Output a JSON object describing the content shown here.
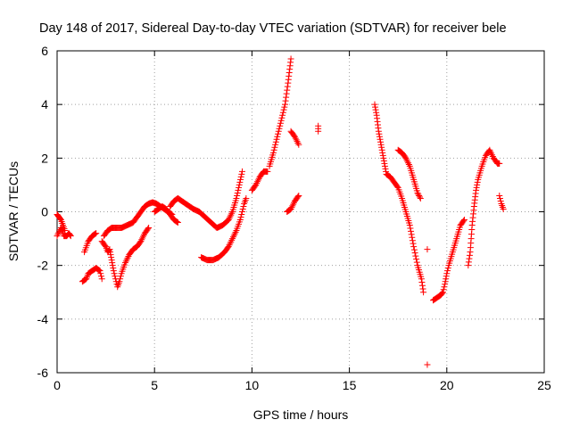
{
  "chart_data": {
    "type": "scatter",
    "title": "Day 148 of 2017, Sidereal Day-to-day VTEC variation (SDTVAR) for receiver bele",
    "xlabel": "GPS time / hours",
    "ylabel": "SDTVAR / TECUs",
    "xlim": [
      0,
      25
    ],
    "ylim": [
      -6,
      6
    ],
    "xticks": [
      0,
      5,
      10,
      15,
      20,
      25
    ],
    "yticks": [
      -6,
      -4,
      -2,
      0,
      2,
      4,
      6
    ],
    "xtick_labels": [
      "0",
      "5",
      "10",
      "15",
      "20",
      "25"
    ],
    "ytick_labels": [
      "-6",
      "-4",
      "-2",
      "0",
      "2",
      "4",
      "6"
    ],
    "grid": true,
    "legend": "none",
    "marker": "+",
    "color": "#ff0000",
    "series": [
      {
        "polylines": [
          [
            [
              0.0,
              -0.9
            ],
            [
              0.2,
              -0.6
            ],
            [
              0.35,
              -0.9
            ],
            [
              0.5,
              -0.9
            ],
            [
              0.6,
              -0.8
            ],
            [
              0.7,
              -0.9
            ]
          ],
          [
            [
              0.0,
              -0.1
            ],
            [
              0.1,
              -0.2
            ],
            [
              0.2,
              -0.3
            ],
            [
              0.3,
              -0.5
            ],
            [
              0.4,
              -0.7
            ]
          ],
          [
            [
              1.3,
              -2.6
            ],
            [
              1.5,
              -2.5
            ],
            [
              1.6,
              -2.3
            ],
            [
              1.8,
              -2.2
            ],
            [
              2.0,
              -2.1
            ],
            [
              2.2,
              -2.2
            ],
            [
              2.3,
              -2.5
            ]
          ],
          [
            [
              1.4,
              -1.5
            ],
            [
              1.6,
              -1.1
            ],
            [
              1.8,
              -0.9
            ],
            [
              2.0,
              -0.8
            ]
          ],
          [
            [
              2.3,
              -1.1
            ],
            [
              2.5,
              -1.3
            ],
            [
              2.6,
              -1.5
            ],
            [
              2.7,
              -1.4
            ],
            [
              2.8,
              -1.8
            ],
            [
              2.9,
              -2.2
            ],
            [
              3.0,
              -2.5
            ],
            [
              3.1,
              -2.8
            ],
            [
              3.2,
              -2.6
            ],
            [
              3.3,
              -2.3
            ],
            [
              3.5,
              -1.9
            ],
            [
              3.7,
              -1.6
            ],
            [
              3.9,
              -1.4
            ],
            [
              4.1,
              -1.3
            ],
            [
              4.3,
              -1.1
            ],
            [
              4.5,
              -0.8
            ],
            [
              4.7,
              -0.6
            ]
          ],
          [
            [
              2.4,
              -0.9
            ],
            [
              2.6,
              -0.7
            ],
            [
              2.8,
              -0.6
            ],
            [
              3.0,
              -0.6
            ],
            [
              3.3,
              -0.6
            ],
            [
              3.6,
              -0.5
            ],
            [
              3.9,
              -0.4
            ],
            [
              4.1,
              -0.2
            ],
            [
              4.3,
              0.0
            ],
            [
              4.5,
              0.2
            ],
            [
              4.7,
              0.3
            ],
            [
              4.9,
              0.35
            ],
            [
              5.1,
              0.3
            ],
            [
              5.3,
              0.2
            ],
            [
              5.5,
              0.1
            ],
            [
              5.7,
              0.0
            ],
            [
              5.9,
              -0.1
            ]
          ],
          [
            [
              5.0,
              0.0
            ],
            [
              5.2,
              0.1
            ],
            [
              5.4,
              0.2
            ],
            [
              5.6,
              0.1
            ],
            [
              5.8,
              -0.1
            ],
            [
              6.0,
              -0.3
            ],
            [
              6.2,
              -0.4
            ]
          ],
          [
            [
              5.8,
              0.2
            ],
            [
              6.0,
              0.4
            ],
            [
              6.2,
              0.5
            ],
            [
              6.4,
              0.4
            ],
            [
              6.6,
              0.3
            ],
            [
              6.8,
              0.2
            ],
            [
              7.0,
              0.1
            ],
            [
              7.3,
              0.0
            ],
            [
              7.6,
              -0.2
            ],
            [
              7.9,
              -0.4
            ],
            [
              8.2,
              -0.6
            ],
            [
              8.5,
              -0.5
            ],
            [
              8.8,
              -0.3
            ],
            [
              9.0,
              0.0
            ],
            [
              9.2,
              0.5
            ],
            [
              9.35,
              1.0
            ],
            [
              9.5,
              1.5
            ]
          ],
          [
            [
              7.4,
              -1.7
            ],
            [
              7.7,
              -1.8
            ],
            [
              8.0,
              -1.8
            ],
            [
              8.3,
              -1.7
            ],
            [
              8.6,
              -1.5
            ],
            [
              8.8,
              -1.3
            ],
            [
              9.0,
              -1.0
            ],
            [
              9.2,
              -0.7
            ],
            [
              9.4,
              -0.3
            ],
            [
              9.5,
              0.0
            ],
            [
              9.6,
              0.3
            ],
            [
              9.7,
              0.5
            ]
          ],
          [
            [
              10.0,
              0.8
            ],
            [
              10.2,
              1.0
            ],
            [
              10.4,
              1.3
            ],
            [
              10.6,
              1.5
            ],
            [
              10.8,
              1.5
            ]
          ],
          [
            [
              10.9,
              1.7
            ],
            [
              11.1,
              2.2
            ],
            [
              11.3,
              2.8
            ],
            [
              11.5,
              3.4
            ],
            [
              11.7,
              4.0
            ],
            [
              11.85,
              4.8
            ],
            [
              12.0,
              5.7
            ]
          ],
          [
            [
              11.8,
              0.0
            ],
            [
              12.0,
              0.1
            ],
            [
              12.2,
              0.4
            ],
            [
              12.4,
              0.6
            ]
          ],
          [
            [
              12.0,
              3.0
            ],
            [
              12.2,
              2.8
            ],
            [
              12.4,
              2.5
            ]
          ],
          [
            [
              13.4,
              3.0
            ],
            [
              13.4,
              3.2
            ]
          ],
          [
            [
              16.3,
              4.0
            ],
            [
              16.4,
              3.6
            ],
            [
              16.5,
              3.0
            ],
            [
              16.6,
              2.6
            ],
            [
              16.7,
              2.2
            ],
            [
              16.8,
              1.8
            ],
            [
              16.9,
              1.4
            ],
            [
              17.1,
              1.3
            ],
            [
              17.3,
              1.1
            ],
            [
              17.5,
              0.9
            ],
            [
              17.7,
              0.5
            ],
            [
              17.9,
              0.0
            ],
            [
              18.1,
              -0.5
            ],
            [
              18.3,
              -1.3
            ],
            [
              18.5,
              -2.0
            ],
            [
              18.7,
              -2.5
            ],
            [
              18.8,
              -3.0
            ]
          ],
          [
            [
              17.5,
              2.3
            ],
            [
              17.7,
              2.2
            ],
            [
              17.9,
              2.0
            ],
            [
              18.1,
              1.7
            ],
            [
              18.3,
              1.2
            ],
            [
              18.5,
              0.7
            ],
            [
              18.65,
              0.5
            ]
          ],
          [
            [
              19.0,
              -1.4
            ]
          ],
          [
            [
              19.3,
              -3.3
            ],
            [
              19.5,
              -3.2
            ],
            [
              19.7,
              -3.1
            ],
            [
              19.8,
              -3.0
            ],
            [
              19.9,
              -2.7
            ],
            [
              20.0,
              -2.3
            ],
            [
              20.1,
              -2.0
            ],
            [
              20.3,
              -1.5
            ],
            [
              20.5,
              -1.0
            ],
            [
              20.7,
              -0.5
            ],
            [
              20.9,
              -0.3
            ]
          ],
          [
            [
              21.1,
              -2.0
            ],
            [
              21.2,
              -1.5
            ],
            [
              21.3,
              -0.5
            ],
            [
              21.4,
              0.2
            ],
            [
              21.5,
              0.8
            ],
            [
              21.6,
              1.2
            ],
            [
              21.8,
              1.7
            ],
            [
              22.0,
              2.1
            ],
            [
              22.2,
              2.3
            ],
            [
              22.4,
              2.0
            ],
            [
              22.6,
              1.8
            ],
            [
              22.7,
              1.8
            ]
          ],
          [
            [
              22.7,
              0.6
            ],
            [
              22.8,
              0.3
            ],
            [
              22.9,
              0.1
            ]
          ],
          [
            [
              19.0,
              -5.7
            ]
          ]
        ]
      }
    ]
  }
}
